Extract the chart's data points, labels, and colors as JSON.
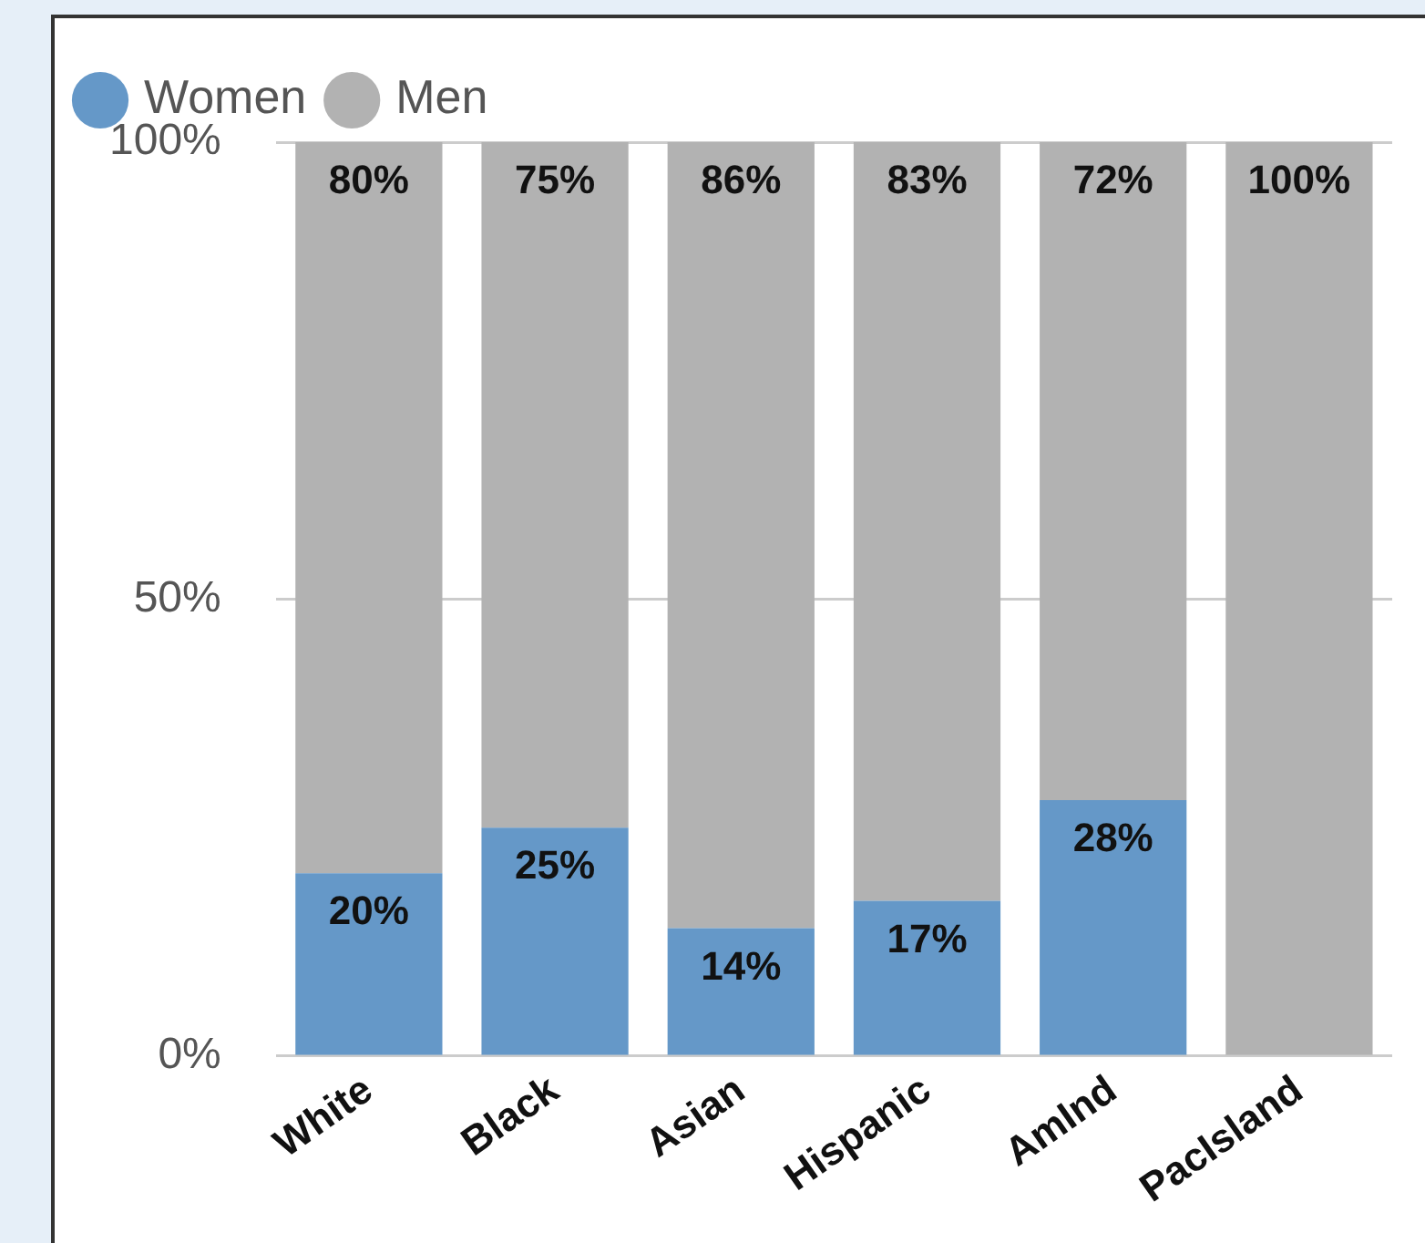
{
  "chart_data": {
    "type": "bar",
    "stacked": true,
    "categories": [
      "White",
      "Black",
      "Asian",
      "Hispanic",
      "AmInd",
      "PacIsland"
    ],
    "series": [
      {
        "name": "Women",
        "color": "#6598c8",
        "values": [
          20,
          25,
          14,
          17,
          28,
          0
        ],
        "value_labels": [
          "20%",
          "25%",
          "14%",
          "17%",
          "28%",
          null
        ]
      },
      {
        "name": "Men",
        "color": "#b2b2b2",
        "values": [
          80,
          75,
          86,
          83,
          72,
          100
        ],
        "value_labels": [
          "80%",
          "75%",
          "86%",
          "83%",
          "72%",
          "100%"
        ]
      }
    ],
    "ylim": [
      0,
      100
    ],
    "yticks": [
      {
        "value": 0,
        "label": "0%"
      },
      {
        "value": 50,
        "label": "50%"
      },
      {
        "value": 100,
        "label": "100%"
      }
    ],
    "grid": "y",
    "legend": "top left"
  }
}
